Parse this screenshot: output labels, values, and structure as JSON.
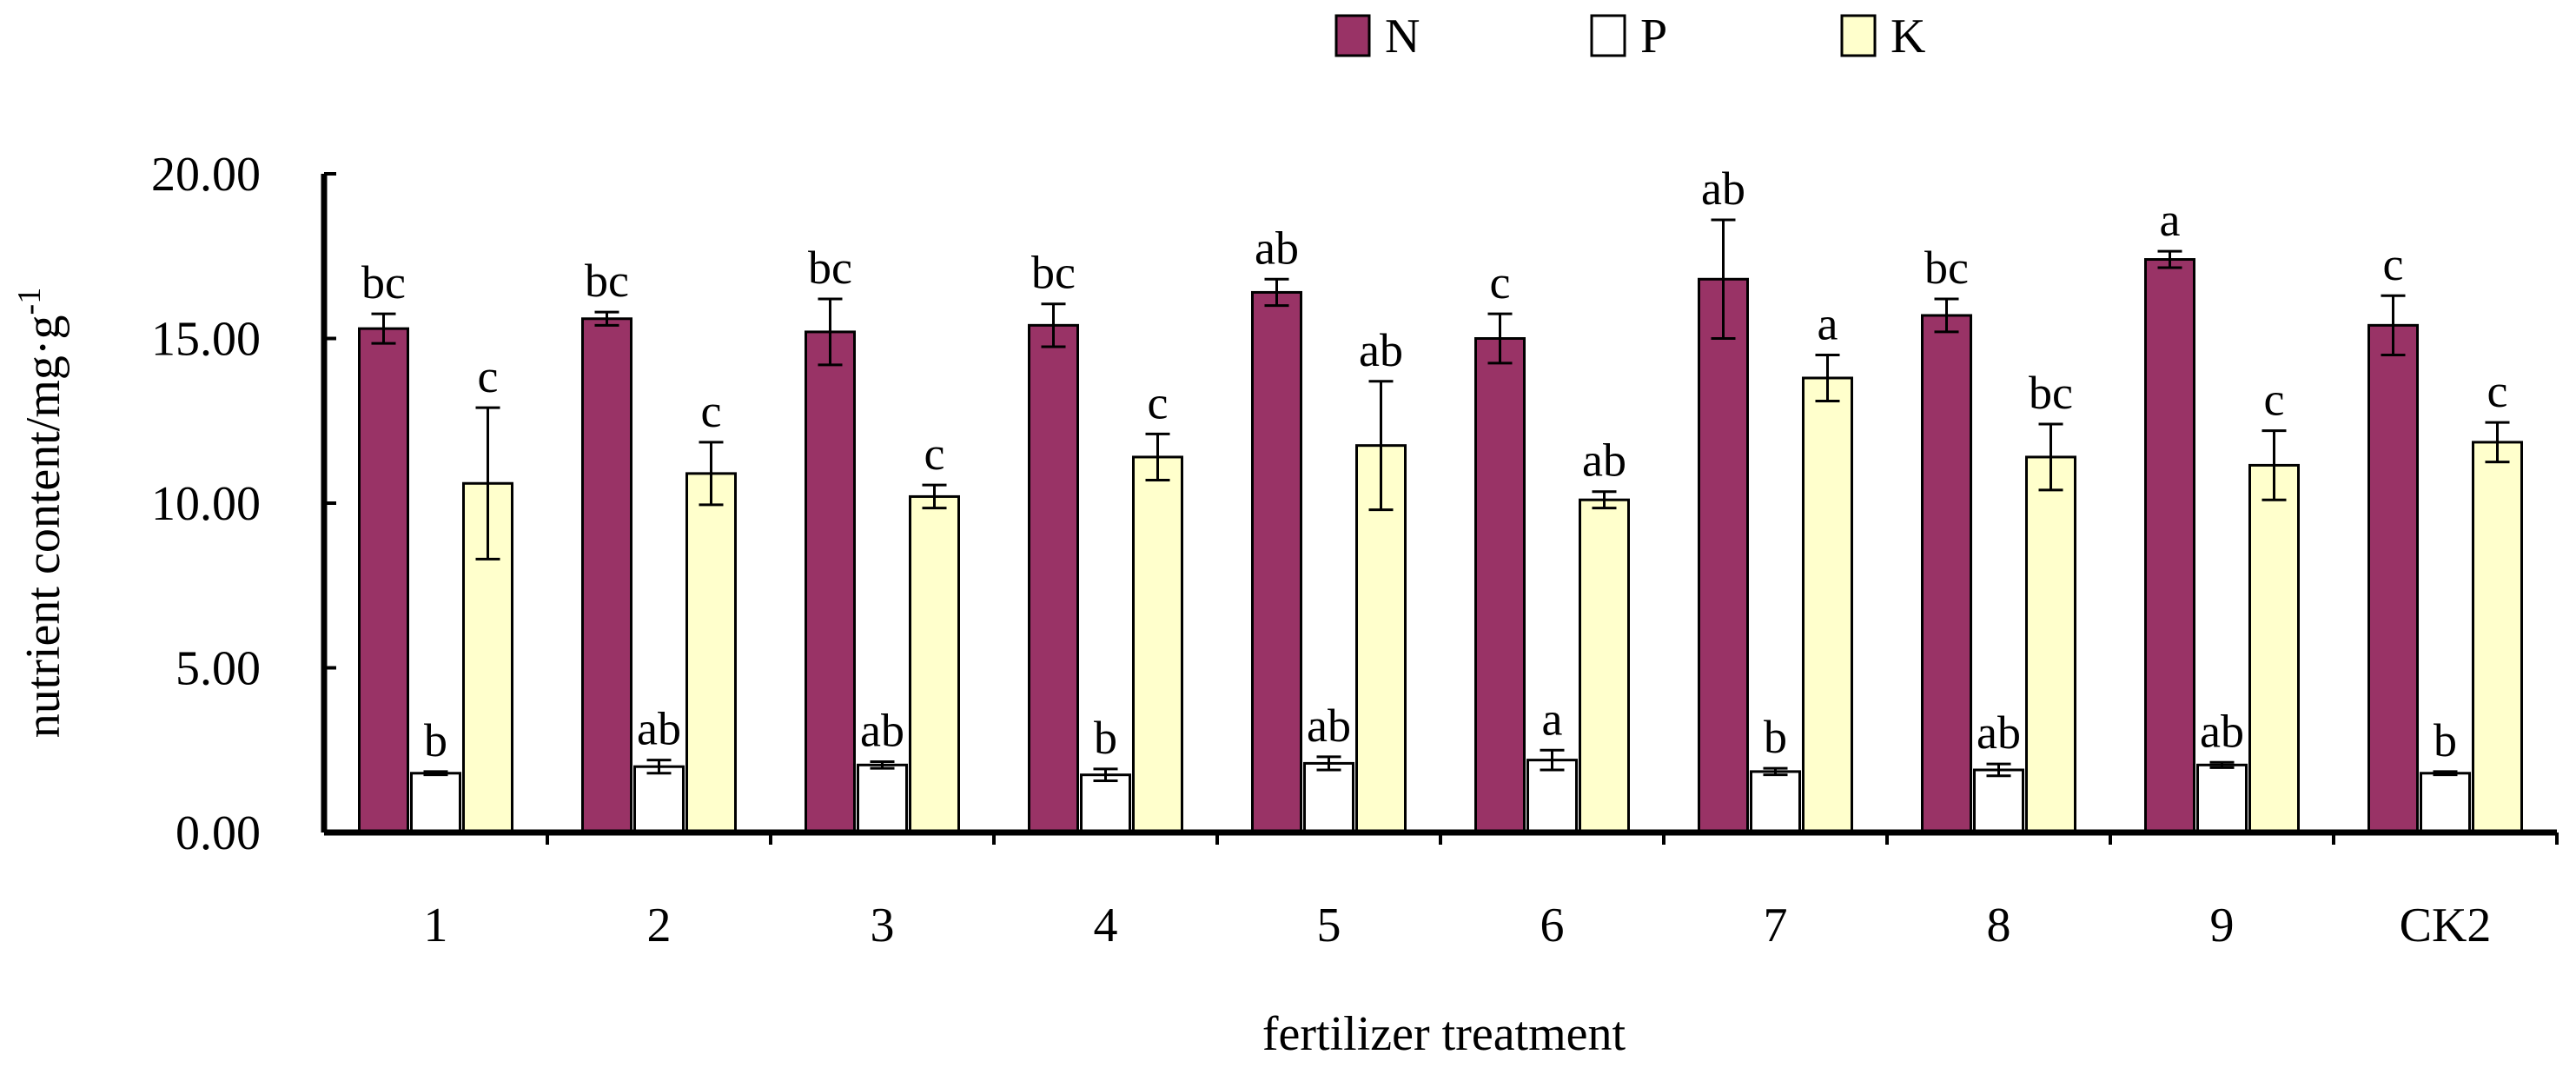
{
  "chart_data": {
    "type": "bar",
    "title": "",
    "xlabel": "fertilizer treatment",
    "ylabel": "nutrient content/mg·g",
    "ylabel_superscript": "-1",
    "categories": [
      "1",
      "2",
      "3",
      "4",
      "5",
      "6",
      "7",
      "8",
      "9",
      "CK2"
    ],
    "ylim": [
      0,
      20
    ],
    "yticks": [
      "0.00",
      "5.00",
      "10.00",
      "15.00",
      "20.00"
    ],
    "grid": false,
    "legend_position": "top-center",
    "series": [
      {
        "name": "N",
        "color": "#993366",
        "values": [
          15.3,
          15.6,
          15.2,
          15.4,
          16.4,
          15.0,
          16.8,
          15.7,
          17.4,
          15.4
        ],
        "errors": [
          0.45,
          0.2,
          1.0,
          0.65,
          0.4,
          0.75,
          1.8,
          0.5,
          0.25,
          0.9
        ],
        "labels": [
          "bc",
          "bc",
          "bc",
          "bc",
          "ab",
          "c",
          "ab",
          "bc",
          "a",
          "c"
        ]
      },
      {
        "name": "P",
        "color": "#ffffff",
        "values": [
          1.8,
          2.0,
          2.05,
          1.75,
          2.1,
          2.2,
          1.85,
          1.9,
          2.05,
          1.8
        ],
        "errors": [
          0.05,
          0.2,
          0.1,
          0.18,
          0.2,
          0.3,
          0.1,
          0.18,
          0.08,
          0.05
        ],
        "labels": [
          "b",
          "ab",
          "ab",
          "b",
          "ab",
          "a",
          "b",
          "ab",
          "ab",
          "b"
        ]
      },
      {
        "name": "K",
        "color": "#ffffcc",
        "values": [
          10.6,
          10.9,
          10.2,
          11.4,
          11.75,
          10.1,
          13.8,
          11.4,
          11.15,
          11.85
        ],
        "errors": [
          2.3,
          0.95,
          0.35,
          0.7,
          1.95,
          0.25,
          0.7,
          1.0,
          1.05,
          0.6
        ],
        "labels": [
          "c",
          "c",
          "c",
          "c",
          "ab",
          "ab",
          "a",
          "bc",
          "c",
          "c"
        ]
      }
    ]
  }
}
